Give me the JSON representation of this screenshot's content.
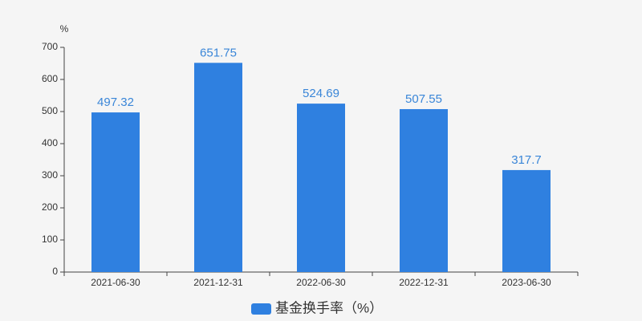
{
  "chart_data": {
    "type": "bar",
    "y_axis_label": "%",
    "categories": [
      "2021-06-30",
      "2021-12-31",
      "2022-06-30",
      "2022-12-31",
      "2023-06-30"
    ],
    "series": [
      {
        "name": "基金换手率（%）",
        "color": "#2f80e0",
        "values": [
          497.32,
          651.75,
          524.69,
          507.55,
          317.7
        ]
      }
    ],
    "ylim": [
      0,
      700
    ],
    "yticks": [
      0,
      100,
      200,
      300,
      400,
      500,
      600,
      700
    ],
    "grid": false,
    "legend": "bottom"
  }
}
